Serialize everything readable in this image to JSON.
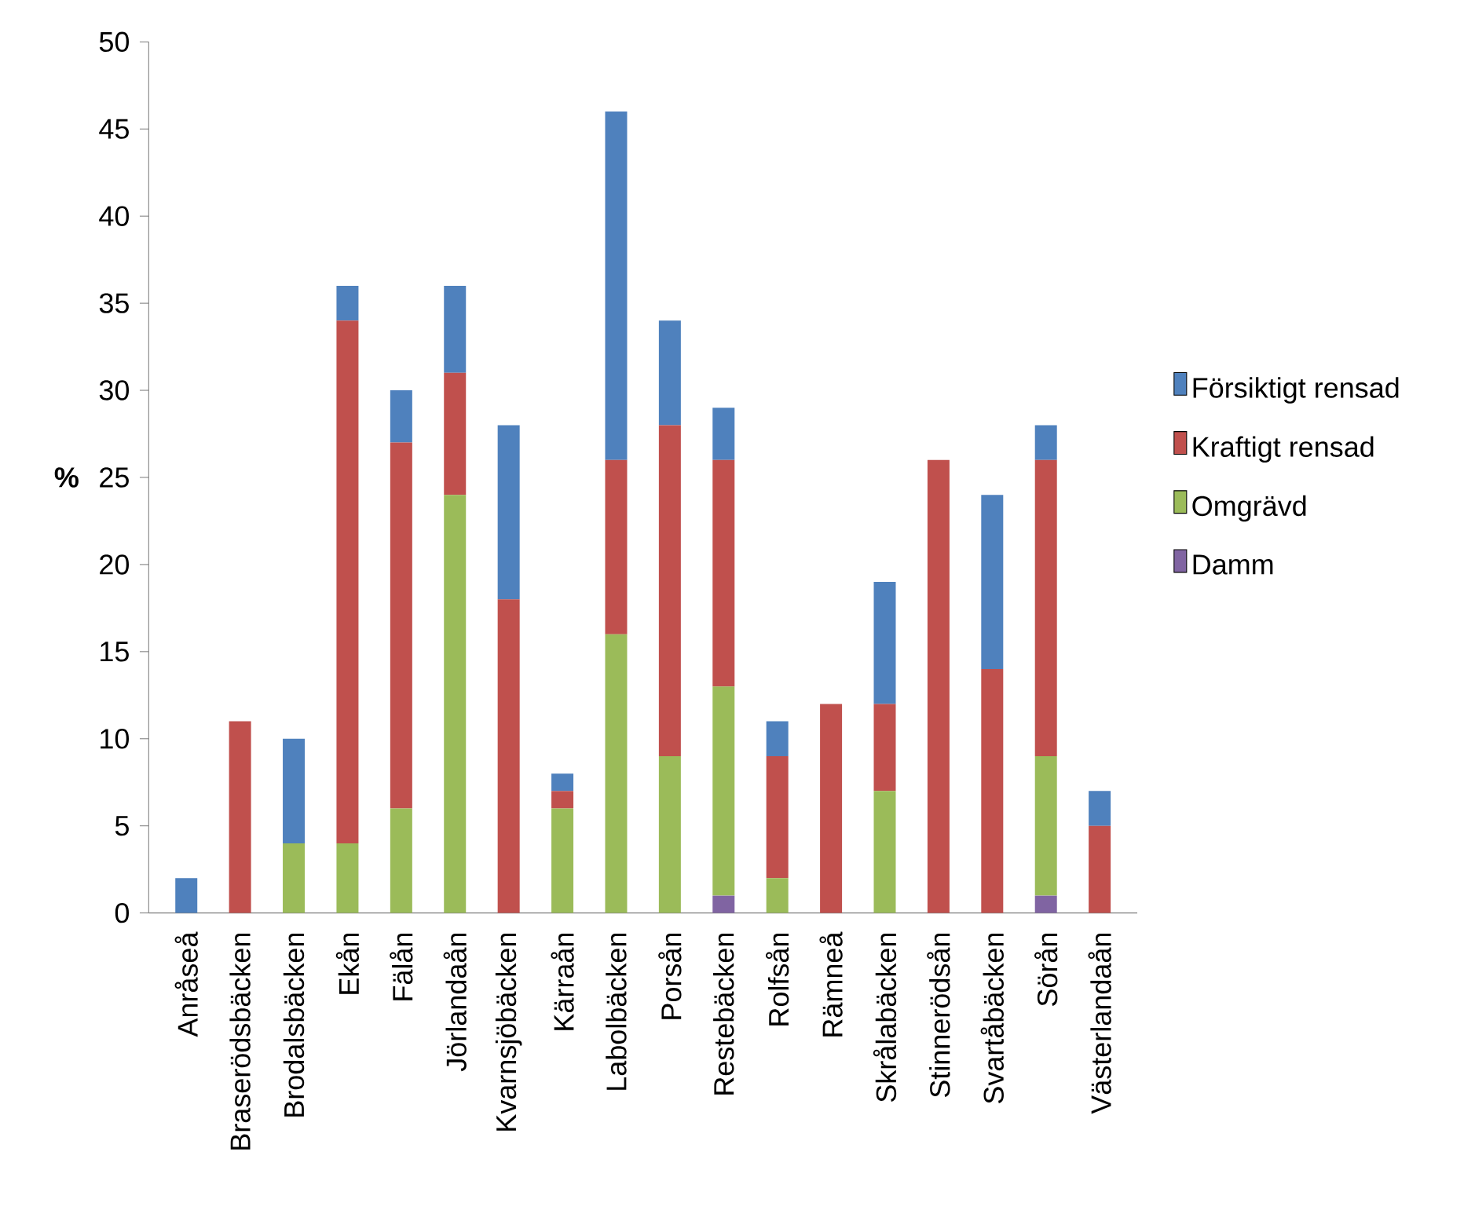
{
  "chart_data": {
    "type": "bar",
    "stacked": true,
    "ylabel": "%",
    "categories": [
      "Anråseå",
      "Braserödsbäcken",
      "Brodalsbäcken",
      "Ekån",
      "Fälån",
      "Jörlandaån",
      "Kvarnsjöbäcken",
      "Kärraån",
      "Labolbäcken",
      "Porsån",
      "Restebäcken",
      "Rolfsån",
      "Rämneå",
      "Skrålabäcken",
      "Stinnerödsån",
      "Svartåbäcken",
      "Sörån",
      "Västerlandaån"
    ],
    "series": [
      {
        "name": "Damm",
        "color": "#8064a2",
        "values": [
          0,
          0,
          0,
          0,
          0,
          0,
          0,
          0,
          0,
          0,
          1,
          0,
          0,
          0,
          0,
          0,
          1,
          0
        ]
      },
      {
        "name": "Omgrävd",
        "color": "#9bbb59",
        "values": [
          0,
          0,
          4,
          4,
          6,
          24,
          0,
          6,
          16,
          9,
          12,
          2,
          0,
          7,
          0,
          0,
          8,
          0
        ]
      },
      {
        "name": "Kraftigt rensad",
        "color": "#c0504d",
        "values": [
          0,
          11,
          0,
          30,
          21,
          7,
          18,
          1,
          10,
          19,
          13,
          7,
          12,
          5,
          26,
          14,
          17,
          5
        ]
      },
      {
        "name": "Försiktigt rensad",
        "color": "#4f81bd",
        "values": [
          2,
          0,
          6,
          2,
          3,
          5,
          10,
          1,
          20,
          6,
          3,
          2,
          0,
          7,
          0,
          10,
          2,
          2
        ]
      }
    ],
    "ylim": [
      0,
      50
    ],
    "yticks": [
      0,
      5,
      10,
      15,
      20,
      25,
      30,
      35,
      40,
      45,
      50
    ],
    "legend": "right",
    "grid": false
  }
}
